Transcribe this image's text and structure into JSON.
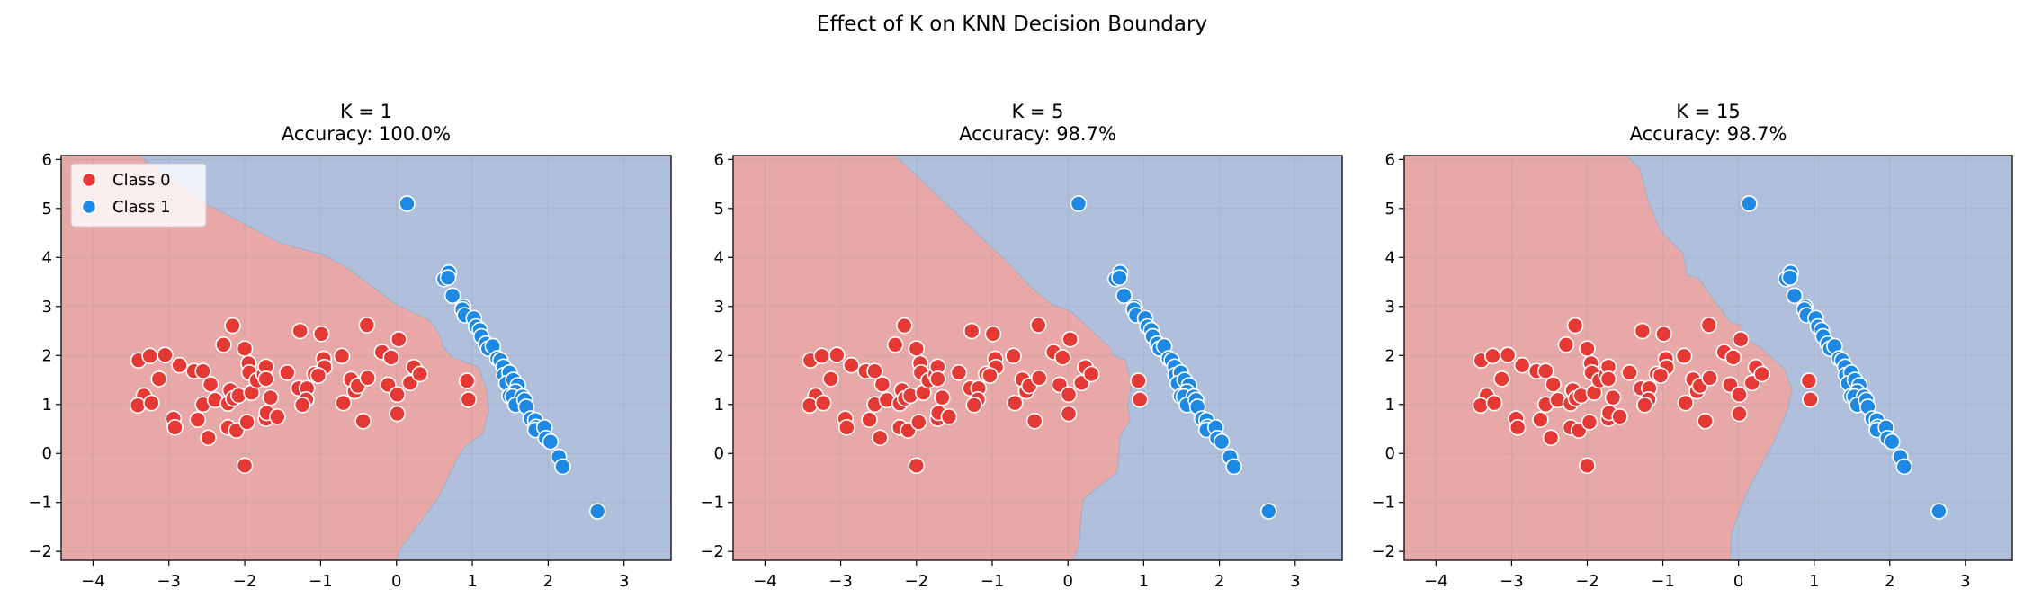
{
  "figure_title": "Effect of K on KNN Decision Boundary",
  "colors": {
    "class0_region": "#e8a8a8",
    "class1_region": "#b0bfdc",
    "class0_point": "#e53935",
    "class1_point": "#1e88e5",
    "point_edge": "#ffffff"
  },
  "legend": {
    "placement": "upper-left",
    "items": [
      {
        "label": "Class 0"
      },
      {
        "label": "Class 1"
      }
    ]
  },
  "points": {
    "class0": [
      [
        -3.4,
        1.9
      ],
      [
        -3.25,
        1.99
      ],
      [
        -3.05,
        2.01
      ],
      [
        -2.86,
        1.8
      ],
      [
        -3.13,
        1.52
      ],
      [
        -3.33,
        1.18
      ],
      [
        -3.41,
        0.98
      ],
      [
        -3.23,
        1.03
      ],
      [
        -2.94,
        0.71
      ],
      [
        -2.92,
        0.53
      ],
      [
        -2.67,
        1.68
      ],
      [
        -2.55,
        1.68
      ],
      [
        -2.45,
        1.41
      ],
      [
        -2.55,
        1.0
      ],
      [
        -2.39,
        1.09
      ],
      [
        -2.62,
        0.69
      ],
      [
        -2.48,
        0.32
      ],
      [
        -2.28,
        2.22
      ],
      [
        -2.16,
        2.61
      ],
      [
        -2.0,
        2.14
      ],
      [
        -1.95,
        1.84
      ],
      [
        -1.94,
        1.65
      ],
      [
        -2.19,
        1.29
      ],
      [
        -2.22,
        1.02
      ],
      [
        -2.15,
        1.12
      ],
      [
        -2.08,
        1.18
      ],
      [
        -1.91,
        1.24
      ],
      [
        -2.22,
        0.53
      ],
      [
        -2.11,
        0.47
      ],
      [
        -1.97,
        0.64
      ],
      [
        -2.0,
        -0.25
      ],
      [
        -1.84,
        1.49
      ],
      [
        -1.75,
        1.61
      ],
      [
        -1.72,
        1.77
      ],
      [
        -1.72,
        1.52
      ],
      [
        -1.66,
        1.14
      ],
      [
        -1.72,
        0.71
      ],
      [
        -1.71,
        0.83
      ],
      [
        -1.57,
        0.75
      ],
      [
        -1.44,
        1.65
      ],
      [
        -1.27,
        2.5
      ],
      [
        -1.29,
        1.33
      ],
      [
        -1.18,
        1.33
      ],
      [
        -1.19,
        1.1
      ],
      [
        -1.24,
        0.99
      ],
      [
        -0.99,
        2.44
      ],
      [
        -0.96,
        1.93
      ],
      [
        -0.95,
        1.76
      ],
      [
        -1.08,
        1.62
      ],
      [
        -1.03,
        1.59
      ],
      [
        -0.72,
        1.99
      ],
      [
        -0.7,
        1.03
      ],
      [
        -0.6,
        1.51
      ],
      [
        -0.55,
        1.27
      ],
      [
        -0.51,
        1.38
      ],
      [
        -0.38,
        1.54
      ],
      [
        -0.39,
        2.62
      ],
      [
        -0.44,
        0.66
      ],
      [
        -0.19,
        2.07
      ],
      [
        -0.07,
        1.96
      ],
      [
        -0.11,
        1.4
      ],
      [
        0.01,
        1.2
      ],
      [
        0.01,
        0.81
      ],
      [
        0.03,
        2.33
      ],
      [
        0.23,
        1.76
      ],
      [
        0.18,
        1.44
      ],
      [
        0.31,
        1.62
      ],
      [
        0.93,
        1.48
      ],
      [
        0.95,
        1.1
      ]
    ],
    "class1": [
      [
        0.14,
        5.1
      ],
      [
        2.65,
        -1.18
      ],
      [
        0.63,
        3.56
      ],
      [
        0.69,
        3.69
      ],
      [
        0.68,
        3.59
      ],
      [
        0.74,
        3.22
      ],
      [
        0.88,
        2.99
      ],
      [
        0.87,
        2.94
      ],
      [
        0.9,
        2.82
      ],
      [
        1.02,
        2.76
      ],
      [
        1.05,
        2.59
      ],
      [
        1.1,
        2.52
      ],
      [
        1.12,
        2.39
      ],
      [
        1.18,
        2.24
      ],
      [
        1.21,
        2.14
      ],
      [
        1.27,
        2.19
      ],
      [
        1.33,
        1.94
      ],
      [
        1.37,
        1.9
      ],
      [
        1.41,
        1.77
      ],
      [
        1.42,
        1.6
      ],
      [
        1.49,
        1.65
      ],
      [
        1.45,
        1.43
      ],
      [
        1.54,
        1.5
      ],
      [
        1.6,
        1.39
      ],
      [
        1.57,
        1.26
      ],
      [
        1.49,
        1.17
      ],
      [
        1.53,
        1.16
      ],
      [
        1.66,
        1.16
      ],
      [
        1.57,
        0.99
      ],
      [
        1.69,
        1.09
      ],
      [
        1.71,
        0.95
      ],
      [
        1.77,
        0.71
      ],
      [
        1.83,
        0.68
      ],
      [
        1.84,
        0.54
      ],
      [
        1.83,
        0.48
      ],
      [
        1.95,
        0.53
      ],
      [
        1.97,
        0.31
      ],
      [
        2.03,
        0.24
      ],
      [
        2.14,
        -0.07
      ],
      [
        2.19,
        -0.27
      ]
    ]
  },
  "chart_data": [
    {
      "type": "scatter",
      "title": "K = 1",
      "subtitle": "Accuracy: 100.0%",
      "xlim": [
        -4.42,
        3.62
      ],
      "ylim": [
        -2.18,
        6.08
      ],
      "xticks": [
        "−4",
        "−3",
        "−2",
        "−1",
        "0",
        "1",
        "2",
        "3"
      ],
      "yticks": [
        "−2",
        "−1",
        "0",
        "1",
        "2",
        "3",
        "4",
        "5",
        "6"
      ],
      "grid": true,
      "legend": true,
      "class0_region_boundary": [
        [
          -3.4,
          6.08
        ],
        [
          -2.51,
          5.1
        ],
        [
          -1.52,
          4.29
        ],
        [
          -0.95,
          4.05
        ],
        [
          -0.6,
          3.74
        ],
        [
          -0.02,
          3.06
        ],
        [
          0.44,
          2.72
        ],
        [
          0.56,
          2.45
        ],
        [
          0.62,
          2.18
        ],
        [
          0.73,
          1.97
        ],
        [
          1.08,
          1.77
        ],
        [
          1.19,
          1.29
        ],
        [
          1.22,
          0.88
        ],
        [
          1.14,
          0.41
        ],
        [
          0.9,
          0.14
        ],
        [
          0.79,
          -0.14
        ],
        [
          0.56,
          -0.88
        ],
        [
          0.27,
          -1.5
        ],
        [
          0.04,
          -1.97
        ],
        [
          0.01,
          -2.18
        ]
      ]
    },
    {
      "type": "scatter",
      "title": "K = 5",
      "subtitle": "Accuracy: 98.7%",
      "xlim": [
        -4.42,
        3.62
      ],
      "ylim": [
        -2.18,
        6.08
      ],
      "xticks": [
        "−4",
        "−3",
        "−2",
        "−1",
        "0",
        "1",
        "2",
        "3"
      ],
      "yticks": [
        "−2",
        "−1",
        "0",
        "1",
        "2",
        "3",
        "4",
        "5",
        "6"
      ],
      "grid": true,
      "legend": false,
      "class0_region_boundary": [
        [
          -2.28,
          6.08
        ],
        [
          -1.92,
          5.56
        ],
        [
          -1.46,
          4.88
        ],
        [
          -0.79,
          3.89
        ],
        [
          -0.48,
          3.39
        ],
        [
          -0.22,
          3.05
        ],
        [
          0.04,
          2.9
        ],
        [
          0.56,
          2.16
        ],
        [
          0.6,
          2.0
        ],
        [
          0.76,
          1.91
        ],
        [
          0.84,
          1.41
        ],
        [
          0.79,
          0.98
        ],
        [
          0.82,
          0.67
        ],
        [
          0.69,
          0.36
        ],
        [
          0.65,
          -0.38
        ],
        [
          0.2,
          -0.94
        ],
        [
          0.14,
          -1.93
        ],
        [
          0.05,
          -2.18
        ]
      ]
    },
    {
      "type": "scatter",
      "title": "K = 15",
      "subtitle": "Accuracy: 98.7%",
      "xlim": [
        -4.42,
        3.62
      ],
      "ylim": [
        -2.18,
        6.08
      ],
      "xticks": [
        "−4",
        "−3",
        "−2",
        "−1",
        "0",
        "1",
        "2",
        "3"
      ],
      "yticks": [
        "−2",
        "−1",
        "0",
        "1",
        "2",
        "3",
        "4",
        "5",
        "6"
      ],
      "grid": true,
      "legend": false,
      "class0_region_boundary": [
        [
          -1.48,
          6.08
        ],
        [
          -1.3,
          5.8
        ],
        [
          -1.2,
          5.19
        ],
        [
          -1.04,
          4.57
        ],
        [
          -0.73,
          4.07
        ],
        [
          -0.68,
          3.64
        ],
        [
          -0.53,
          3.58
        ],
        [
          -0.27,
          3.02
        ],
        [
          -0.11,
          2.68
        ],
        [
          0.04,
          2.62
        ],
        [
          0.04,
          2.4
        ],
        [
          0.3,
          2.16
        ],
        [
          0.61,
          1.72
        ],
        [
          0.71,
          1.29
        ],
        [
          0.64,
          0.86
        ],
        [
          0.45,
          0.18
        ],
        [
          0.14,
          -0.69
        ],
        [
          0.04,
          -1.06
        ],
        [
          -0.09,
          -1.62
        ],
        [
          -0.11,
          -2.18
        ]
      ]
    }
  ]
}
